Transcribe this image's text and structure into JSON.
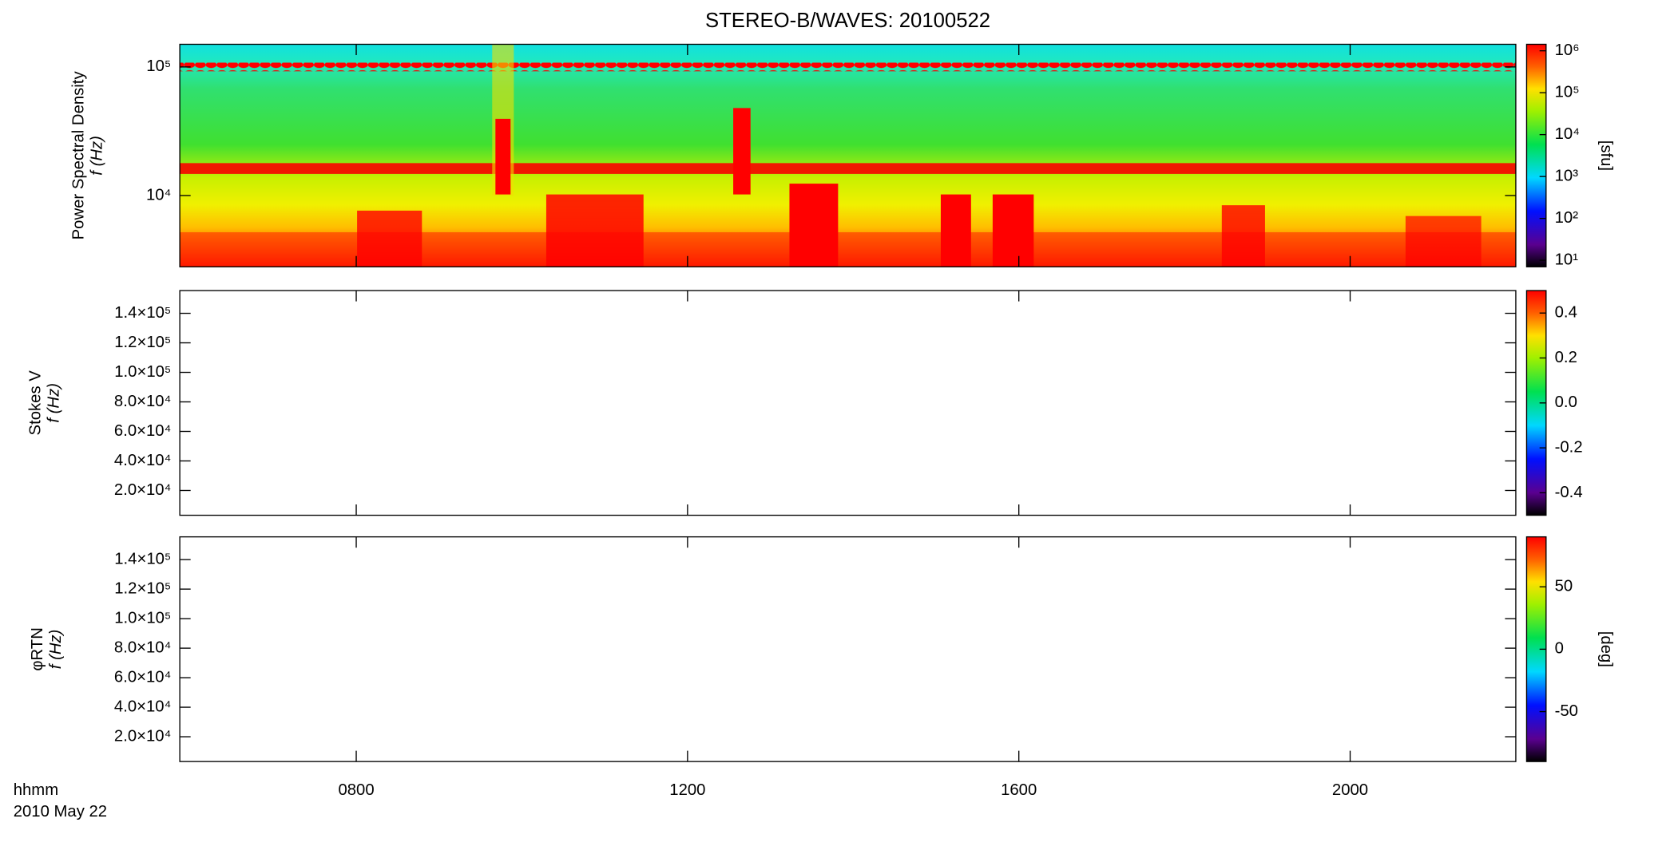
{
  "title": "STEREO-B/WAVES: 20100522",
  "chart_data": [
    {
      "type": "heatmap",
      "ylabel": [
        "Power Spectral Density",
        "f (Hz)"
      ],
      "ylog": true,
      "ylim": [
        2790,
        150000
      ],
      "yticks": [
        {
          "value": 10000,
          "label": "10⁴"
        },
        {
          "value": 100000,
          "label": "10⁵"
        }
      ],
      "xlim": [
        5.87,
        22
      ],
      "xticks": [
        {
          "value": 8,
          "label": "0800"
        },
        {
          "value": 12,
          "label": "1200"
        },
        {
          "value": 16,
          "label": "1600"
        },
        {
          "value": 20,
          "label": "2000"
        }
      ],
      "colorbar": {
        "label": "[sfu]",
        "log": true,
        "lim": [
          7,
          1430000
        ],
        "ticks": [
          {
            "value": 10,
            "label": "10¹"
          },
          {
            "value": 100,
            "label": "10²"
          },
          {
            "value": 1000,
            "label": "10³"
          },
          {
            "value": 10000,
            "label": "10⁴"
          },
          {
            "value": 100000,
            "label": "10⁵"
          },
          {
            "value": 1000000,
            "label": "10⁶"
          }
        ]
      }
    },
    {
      "type": "heatmap",
      "ylabel": [
        "Stokes V",
        "f (Hz)"
      ],
      "ylog": false,
      "ylim": [
        3200,
        155400
      ],
      "yticks": [
        {
          "value": 20000,
          "label": "2.0×10⁴"
        },
        {
          "value": 40000,
          "label": "4.0×10⁴"
        },
        {
          "value": 60000,
          "label": "6.0×10⁴"
        },
        {
          "value": 80000,
          "label": "8.0×10⁴"
        },
        {
          "value": 100000,
          "label": "1.0×10⁵"
        },
        {
          "value": 120000,
          "label": "1.2×10⁵"
        },
        {
          "value": 140000,
          "label": "1.4×10⁵"
        }
      ],
      "xlim": [
        5.87,
        22
      ],
      "xticks": [
        {
          "value": 8,
          "label": "0800"
        },
        {
          "value": 12,
          "label": "1200"
        },
        {
          "value": 16,
          "label": "1600"
        },
        {
          "value": 20,
          "label": "2000"
        }
      ],
      "colorbar": {
        "log": false,
        "lim": [
          -0.5,
          0.5
        ],
        "ticks": [
          -0.4,
          -0.2,
          {
            "value": 0,
            "label": "0.0"
          },
          0.2,
          0.4
        ]
      }
    },
    {
      "type": "heatmap",
      "ylabel": [
        "φRTN",
        "f (Hz)"
      ],
      "ylog": false,
      "ylim": [
        3200,
        155400
      ],
      "yticks": [
        {
          "value": 20000,
          "label": "2.0×10⁴"
        },
        {
          "value": 40000,
          "label": "4.0×10⁴"
        },
        {
          "value": 60000,
          "label": "6.0×10⁴"
        },
        {
          "value": 80000,
          "label": "8.0×10⁴"
        },
        {
          "value": 100000,
          "label": "1.0×10⁵"
        },
        {
          "value": 120000,
          "label": "1.2×10⁵"
        },
        {
          "value": 140000,
          "label": "1.4×10⁵"
        }
      ],
      "xlim": [
        5.87,
        22
      ],
      "xticks": [
        {
          "value": 8,
          "label": "0800"
        },
        {
          "value": 12,
          "label": "1200"
        },
        {
          "value": 16,
          "label": "1600"
        },
        {
          "value": 20,
          "label": "2000"
        }
      ],
      "colorbar": {
        "label": "[deg]",
        "log": false,
        "lim": [
          -90,
          90
        ],
        "ticks": [
          -50,
          0,
          50
        ]
      }
    }
  ],
  "x_label": "hhmm",
  "date_label": "2010 May 22"
}
